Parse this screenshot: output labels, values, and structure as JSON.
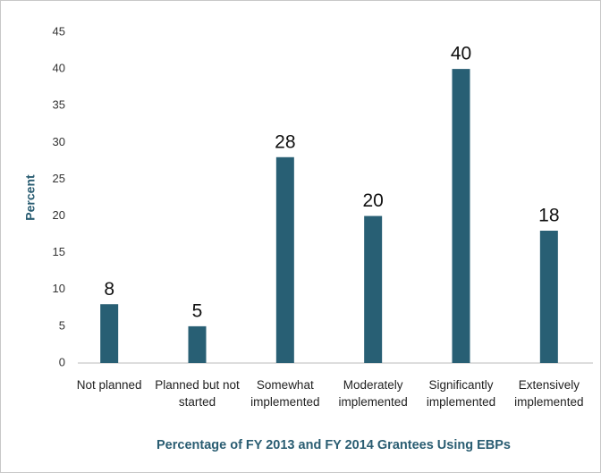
{
  "chart_data": {
    "type": "bar",
    "x_label": "Percentage of FY 2013 and FY 2014 Grantees Using EBPs",
    "y_label": "Percent",
    "categories": [
      "Not planned",
      "Planned but not started",
      "Somewhat implemented",
      "Moderately implemented",
      "Significantly implemented",
      "Extensively implemented"
    ],
    "values": [
      8,
      5,
      28,
      20,
      40,
      18
    ],
    "color": "#285f74",
    "ylim": [
      0,
      45
    ],
    "yticks": [
      0,
      5,
      10,
      15,
      20,
      25,
      30,
      35,
      40,
      45
    ],
    "grid": false
  }
}
